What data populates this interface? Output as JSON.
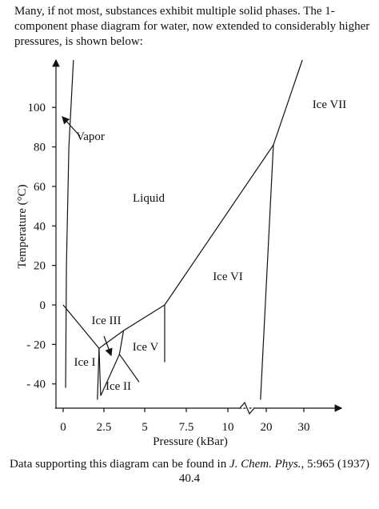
{
  "intro": [
    "Many, if not most, substances exhibit multiple solid phases.  The    1-",
    "component phase diagram for water, now extended to considerably higher",
    "pressures, is shown below:"
  ],
  "chart_data": {
    "type": "phase-diagram",
    "x_label": "Pressure (kBar)",
    "y_label": "Temperature (°C)",
    "xlim": [
      -0.5,
      40
    ],
    "ylim": [
      -47,
      124
    ],
    "xticks": [
      0,
      2.5,
      5,
      7.5,
      10,
      20,
      30
    ],
    "yticks": [
      {
        "value": -40,
        "label": "- 40"
      },
      {
        "value": -20,
        "label": "- 20"
      },
      0,
      20,
      40,
      60,
      80,
      100
    ],
    "regions": [
      "Vapor",
      "Liquid",
      "Ice VII",
      "Ice VI",
      "Ice III",
      "Ice V",
      "Ice I",
      "Ice II"
    ],
    "boundaries": [
      {
        "x": [
          0.15,
          0.2,
          0.35,
          0.63
        ],
        "y": [
          -42,
          20,
          80,
          124
        ]
      },
      {
        "x": [
          0,
          2.2
        ],
        "y": [
          0,
          -22
        ]
      },
      {
        "x": [
          2.2,
          2.1
        ],
        "y": [
          -22,
          -48
        ]
      },
      {
        "x": [
          2.2,
          3.7,
          6.2
        ],
        "y": [
          -22,
          -13,
          0
        ]
      },
      {
        "x": [
          2.2,
          2.3,
          3.45,
          3.7
        ],
        "y": [
          -22,
          -46,
          -25,
          -13
        ]
      },
      {
        "x": [
          3.45,
          4.65
        ],
        "y": [
          -25,
          -39
        ]
      },
      {
        "x": [
          6.2,
          6.2
        ],
        "y": [
          0,
          -29
        ]
      },
      {
        "x": [
          6.2,
          21.9,
          29.6
        ],
        "y": [
          0,
          81,
          124
        ]
      },
      {
        "x": [
          21.9,
          18.5
        ],
        "y": [
          81,
          -48
        ]
      }
    ]
  },
  "caption": {
    "text": "Data supporting this diagram can be found in ",
    "journal": "J. Chem. Phys.",
    "ref": ", 5:965 (1937)"
  },
  "page_number": "40.4"
}
